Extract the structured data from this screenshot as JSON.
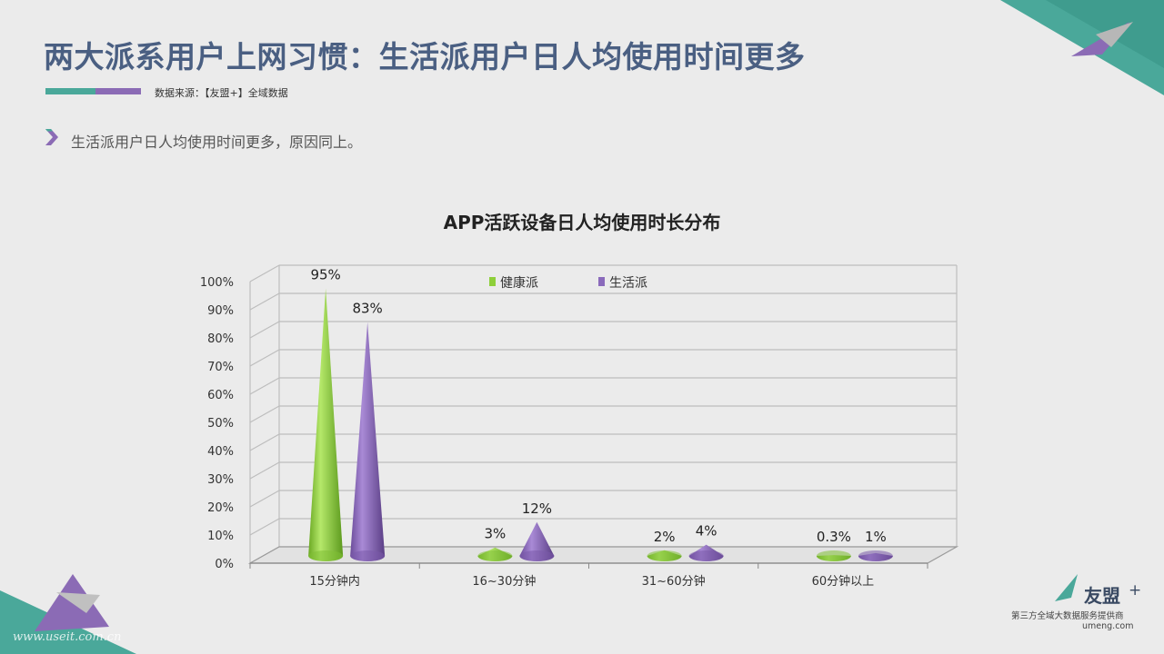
{
  "header": {
    "title": "两大派系用户上网习惯：生活派用户日人均使用时间更多",
    "source": "数据来源：【友盟+】全域数据"
  },
  "bullet": {
    "text": "生活派用户日人均使用时间更多，原因同上。"
  },
  "brand": {
    "name": "友盟",
    "plus": "+",
    "tagline": "第三方全域大数据服务提供商",
    "url": "umeng.com"
  },
  "watermark": "www.useit.com.cn",
  "colors": {
    "title": "#4a5f82",
    "teal": "#4aa89a",
    "purple": "#8b6bb5",
    "health": "#8ecf3a",
    "life": "#8a6abb"
  },
  "chart_data": {
    "type": "bar",
    "style": "3d-cone",
    "title": "APP活跃设备日人均使用时长分布",
    "categories": [
      "15分钟内",
      "16~30分钟",
      "31~60分钟",
      "60分钟以上"
    ],
    "series": [
      {
        "name": "健康派",
        "values": [
          95,
          3,
          2,
          0.3
        ],
        "labels": [
          "95%",
          "3%",
          "2%",
          "0.3%"
        ]
      },
      {
        "name": "生活派",
        "values": [
          83,
          12,
          4,
          1
        ],
        "labels": [
          "83%",
          "12%",
          "4%",
          "1%"
        ]
      }
    ],
    "yticks": [
      "0%",
      "10%",
      "20%",
      "30%",
      "40%",
      "50%",
      "60%",
      "70%",
      "80%",
      "90%",
      "100%"
    ],
    "ylim": [
      0,
      100
    ],
    "grid": true,
    "legend_position": "top-center"
  }
}
